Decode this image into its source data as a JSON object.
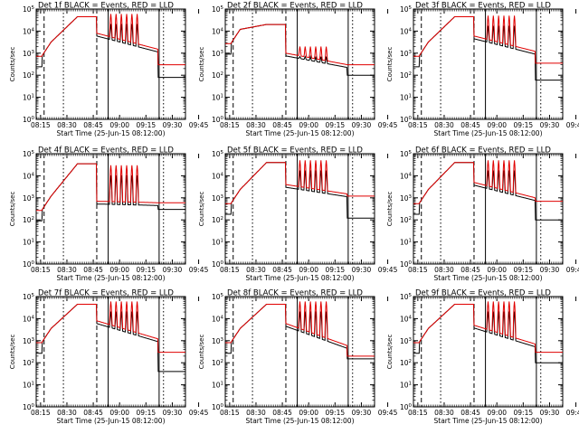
{
  "colors": {
    "events": "#000000",
    "lld": "#e00000",
    "background": "#ffffff",
    "axes": "#000000"
  },
  "chart_data": [
    {
      "type": "line",
      "title": "Det 1f BLACK = Events, RED = LLD",
      "xlabel": "Start Time (25-Jun-15 08:12:00)",
      "ylabel": "Counts/sec",
      "x_ticks": [
        "08:15",
        "08:30",
        "08:45",
        "09:00",
        "09:15",
        "09:30",
        "09:45"
      ],
      "ylim": [
        1,
        100000
      ],
      "y_ticks": [
        "10^0",
        "10^1",
        "10^2",
        "10^3",
        "10^4",
        "10^5"
      ],
      "series": [
        {
          "name": "Events",
          "color": "#000000"
        },
        {
          "name": "LLD",
          "color": "#e00000"
        }
      ],
      "profile": {
        "base": 800,
        "peak": 45000,
        "decay_start": 8000,
        "decay_end": 1500,
        "spike_peak": 60000,
        "tail_lld": 300,
        "tail_events": 80
      }
    },
    {
      "type": "line",
      "title": "Det 2f BLACK = Events, RED = LLD",
      "xlabel": "Start Time (25-Jun-15 08:12:00)",
      "ylabel": "Counts/sec",
      "x_ticks": [
        "08:15",
        "08:30",
        "08:45",
        "09:00",
        "09:15",
        "09:30",
        "09:45"
      ],
      "ylim": [
        1,
        100000
      ],
      "y_ticks": [
        "10^0",
        "10^1",
        "10^2",
        "10^3",
        "10^4",
        "10^5"
      ],
      "series": [
        {
          "name": "Events",
          "color": "#000000"
        },
        {
          "name": "LLD",
          "color": "#e00000"
        }
      ],
      "profile": {
        "base": 3000,
        "peak": 20000,
        "decay_start": 1000,
        "decay_end": 300,
        "spike_peak": 2000,
        "tail_lld": 300,
        "tail_events": 100
      }
    },
    {
      "type": "line",
      "title": "Det 3f BLACK = Events, RED = LLD",
      "xlabel": "Start Time (25-Jun-15 08:12:00)",
      "ylabel": "Counts/sec",
      "x_ticks": [
        "08:15",
        "08:30",
        "08:45",
        "09:00",
        "09:15",
        "09:30",
        "09:45"
      ],
      "ylim": [
        1,
        100000
      ],
      "y_ticks": [
        "10^0",
        "10^1",
        "10^2",
        "10^3",
        "10^4",
        "10^5"
      ],
      "series": [
        {
          "name": "Events",
          "color": "#000000"
        },
        {
          "name": "LLD",
          "color": "#e00000"
        }
      ],
      "profile": {
        "base": 800,
        "peak": 45000,
        "decay_start": 6000,
        "decay_end": 1200,
        "spike_peak": 50000,
        "tail_lld": 350,
        "tail_events": 60
      }
    },
    {
      "type": "line",
      "title": "Det 4f BLACK = Events, RED = LLD",
      "xlabel": "Start Time (25-Jun-15 08:12:00)",
      "ylabel": "Counts/sec",
      "x_ticks": [
        "08:15",
        "08:30",
        "08:45",
        "09:00",
        "09:15",
        "09:30",
        "09:45"
      ],
      "ylim": [
        1,
        100000
      ],
      "y_ticks": [
        "10^0",
        "10^1",
        "10^2",
        "10^3",
        "10^4",
        "10^5"
      ],
      "series": [
        {
          "name": "Events",
          "color": "#000000"
        },
        {
          "name": "LLD",
          "color": "#e00000"
        }
      ],
      "profile": {
        "base": 300,
        "peak": 35000,
        "decay_start": 700,
        "decay_end": 600,
        "spike_peak": 30000,
        "tail_lld": 600,
        "tail_events": 300
      }
    },
    {
      "type": "line",
      "title": "Det 5f BLACK = Events, RED = LLD",
      "xlabel": "Start Time (25-Jun-15 08:12:00)",
      "ylabel": "Counts/sec",
      "x_ticks": [
        "08:15",
        "08:30",
        "08:45",
        "09:00",
        "09:15",
        "09:30",
        "09:45"
      ],
      "ylim": [
        1,
        100000
      ],
      "y_ticks": [
        "10^0",
        "10^1",
        "10^2",
        "10^3",
        "10^4",
        "10^5"
      ],
      "series": [
        {
          "name": "Events",
          "color": "#000000"
        },
        {
          "name": "LLD",
          "color": "#e00000"
        }
      ],
      "profile": {
        "base": 600,
        "peak": 40000,
        "decay_start": 4000,
        "decay_end": 1500,
        "spike_peak": 50000,
        "tail_lld": 1200,
        "tail_events": 120
      }
    },
    {
      "type": "line",
      "title": "Det 6f BLACK = Events, RED = LLD",
      "xlabel": "Start Time (25-Jun-15 08:12:00)",
      "ylabel": "Counts/sec",
      "x_ticks": [
        "08:15",
        "08:30",
        "08:45",
        "09:00",
        "09:15",
        "09:30",
        "09:45"
      ],
      "ylim": [
        1,
        100000
      ],
      "y_ticks": [
        "10^0",
        "10^1",
        "10^2",
        "10^3",
        "10^4",
        "10^5"
      ],
      "series": [
        {
          "name": "Events",
          "color": "#000000"
        },
        {
          "name": "LLD",
          "color": "#e00000"
        }
      ],
      "profile": {
        "base": 600,
        "peak": 40000,
        "decay_start": 5000,
        "decay_end": 1000,
        "spike_peak": 50000,
        "tail_lld": 700,
        "tail_events": 100
      }
    },
    {
      "type": "line",
      "title": "Det 7f BLACK = Events, RED = LLD",
      "xlabel": "Start Time (25-Jun-15 08:12:00)",
      "ylabel": "Counts/sec",
      "x_ticks": [
        "08:15",
        "08:30",
        "08:45",
        "09:00",
        "09:15",
        "09:30",
        "09:45"
      ],
      "ylim": [
        1,
        100000
      ],
      "y_ticks": [
        "10^0",
        "10^1",
        "10^2",
        "10^3",
        "10^4",
        "10^5"
      ],
      "series": [
        {
          "name": "Events",
          "color": "#000000"
        },
        {
          "name": "LLD",
          "color": "#e00000"
        }
      ],
      "profile": {
        "base": 900,
        "peak": 45000,
        "decay_start": 8000,
        "decay_end": 1200,
        "spike_peak": 60000,
        "tail_lld": 300,
        "tail_events": 40
      }
    },
    {
      "type": "line",
      "title": "Det 8f BLACK = Events, RED = LLD",
      "xlabel": "Start Time (25-Jun-15 08:12:00)",
      "ylabel": "Counts/sec",
      "x_ticks": [
        "08:15",
        "08:30",
        "08:45",
        "09:00",
        "09:15",
        "09:30",
        "09:45"
      ],
      "ylim": [
        1,
        100000
      ],
      "y_ticks": [
        "10^0",
        "10^1",
        "10^2",
        "10^3",
        "10^4",
        "10^5"
      ],
      "series": [
        {
          "name": "Events",
          "color": "#000000"
        },
        {
          "name": "LLD",
          "color": "#e00000"
        }
      ],
      "profile": {
        "base": 900,
        "peak": 45000,
        "decay_start": 6000,
        "decay_end": 600,
        "spike_peak": 60000,
        "tail_lld": 200,
        "tail_events": 150
      }
    },
    {
      "type": "line",
      "title": "Det 9f BLACK = Events, RED = LLD",
      "xlabel": "Start Time (25-Jun-15 08:12:00)",
      "ylabel": "Counts/sec",
      "x_ticks": [
        "08:15",
        "08:30",
        "08:45",
        "09:00",
        "09:15",
        "09:30",
        "09:45"
      ],
      "ylim": [
        1,
        100000
      ],
      "y_ticks": [
        "10^0",
        "10^1",
        "10^2",
        "10^3",
        "10^4",
        "10^5"
      ],
      "series": [
        {
          "name": "Events",
          "color": "#000000"
        },
        {
          "name": "LLD",
          "color": "#e00000"
        }
      ],
      "profile": {
        "base": 900,
        "peak": 45000,
        "decay_start": 5000,
        "decay_end": 700,
        "spike_peak": 60000,
        "tail_lld": 300,
        "tail_events": 100
      }
    }
  ]
}
